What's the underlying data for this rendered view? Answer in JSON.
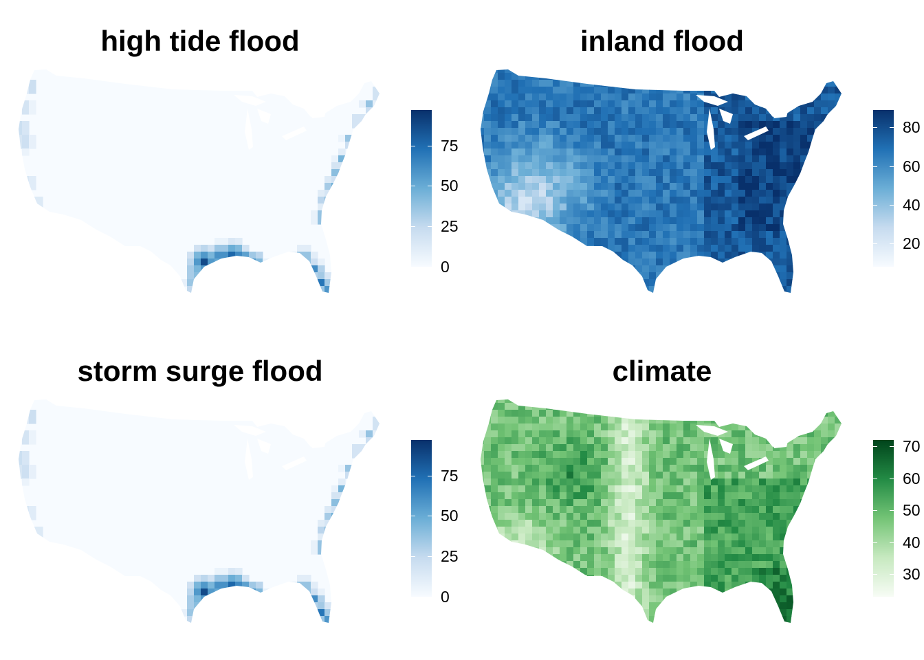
{
  "panels": [
    {
      "title": "high tide flood",
      "palette": "blues",
      "pattern": "coastal",
      "colors": [
        "#f7fbff",
        "#c6dbef",
        "#6baed6",
        "#2171b5",
        "#08306b"
      ],
      "legend": {
        "min": 0,
        "max": 97,
        "ticks": [
          0,
          25,
          50,
          75
        ]
      }
    },
    {
      "title": "inland flood",
      "palette": "blues",
      "pattern": "inland",
      "colors": [
        "#f7fbff",
        "#c6dbef",
        "#6baed6",
        "#2171b5",
        "#08306b"
      ],
      "legend": {
        "min": 8,
        "max": 89,
        "ticks": [
          20,
          40,
          60,
          80
        ]
      }
    },
    {
      "title": "storm surge flood",
      "palette": "blues",
      "pattern": "coastal",
      "colors": [
        "#f7fbff",
        "#c6dbef",
        "#6baed6",
        "#2171b5",
        "#08306b"
      ],
      "legend": {
        "min": 0,
        "max": 97,
        "ticks": [
          0,
          25,
          50,
          75
        ]
      }
    },
    {
      "title": "climate",
      "palette": "greens",
      "pattern": "climate",
      "colors": [
        "#f7fcf5",
        "#c7e9c0",
        "#74c476",
        "#238b45",
        "#00441b"
      ],
      "legend": {
        "min": 23,
        "max": 72,
        "ticks": [
          30,
          40,
          50,
          60,
          70
        ]
      }
    }
  ]
}
